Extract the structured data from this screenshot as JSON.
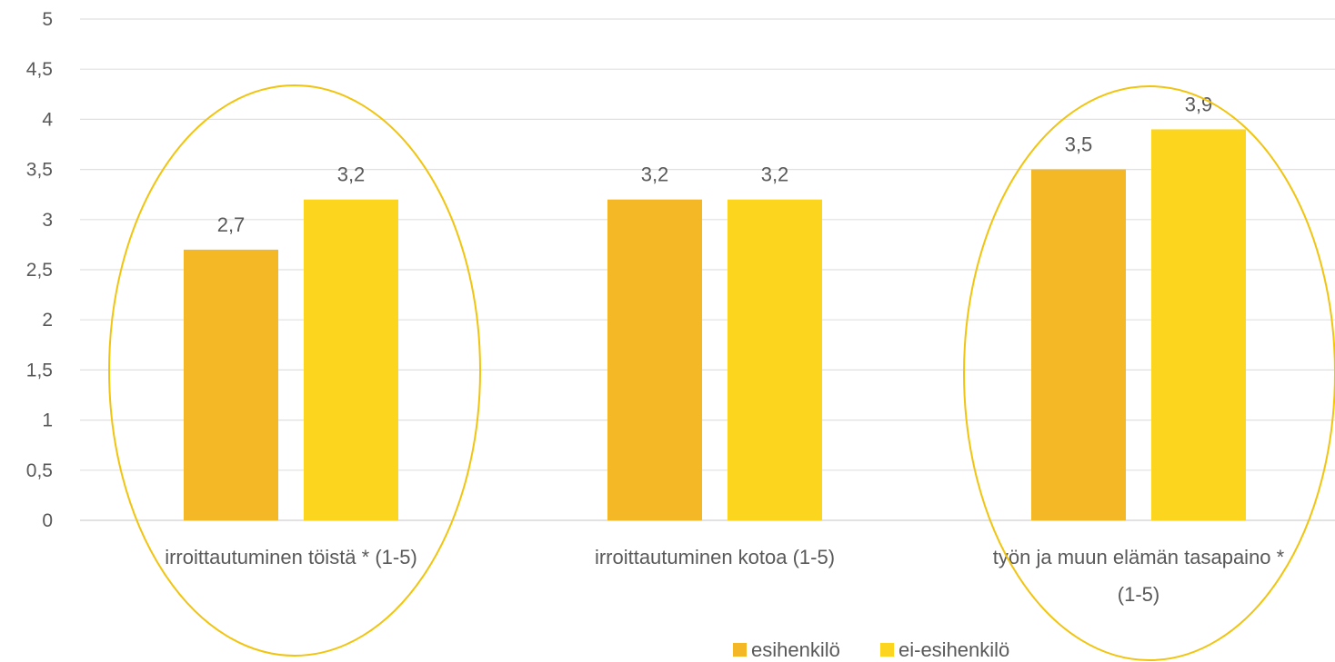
{
  "chart_data": {
    "type": "bar",
    "categories": [
      [
        "irroittautuminen töistä * (1-5)"
      ],
      [
        "irroittautuminen kotoa  (1-5)"
      ],
      [
        "työn ja muun elämän tasapaino *",
        "(1-5)"
      ]
    ],
    "series": [
      {
        "name": "esihenkilö",
        "values": [
          2.7,
          3.2,
          3.5
        ],
        "labels": [
          "2,7",
          "3,2",
          "3,5"
        ],
        "color": "#F4B826"
      },
      {
        "name": "ei-esihenkilö",
        "values": [
          3.2,
          3.2,
          3.9
        ],
        "labels": [
          "3,2",
          "3,2",
          "3,9"
        ],
        "color": "#FCD51F"
      }
    ],
    "ylim": [
      0,
      5
    ],
    "yticks": [
      0,
      0.5,
      1,
      1.5,
      2,
      2.5,
      3,
      3.5,
      4,
      4.5,
      5
    ],
    "ytick_labels": [
      "0",
      "0,5",
      "1",
      "1,5",
      "2",
      "2,5",
      "3",
      "3,5",
      "4",
      "4,5",
      "5"
    ],
    "grid": true,
    "legend_position": "bottom-right",
    "highlight_color": "#F1C40F",
    "highlighted_categories": [
      0,
      2
    ]
  }
}
